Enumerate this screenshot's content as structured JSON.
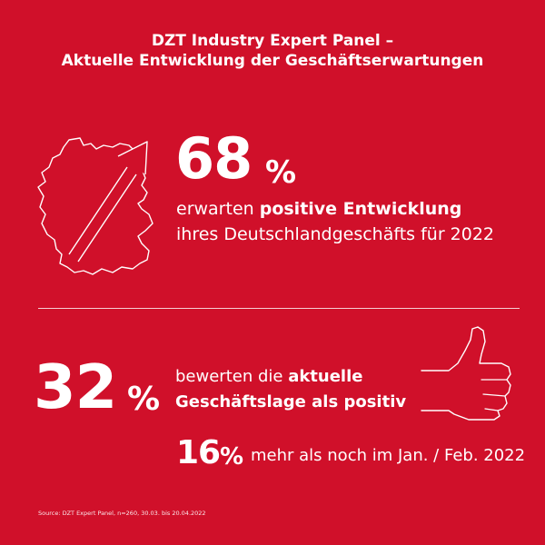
{
  "title": {
    "line1": "DZT Industry Expert Panel –",
    "line2": "Aktuelle Entwicklung der Geschäftserwartungen"
  },
  "stat_positive_outlook": {
    "value": "68",
    "unit": "%",
    "text_plain": "erwarten ",
    "text_bold": "positive Entwicklung",
    "text_line2": "ihres Deutschlandgeschäfts für 2022"
  },
  "stat_current_situation": {
    "value": "32",
    "unit": "%",
    "text_plain": "bewerten die ",
    "text_bold": "aktuelle",
    "text_line2": "Geschäftslage als positiv"
  },
  "stat_increase": {
    "value": "16",
    "unit": "%",
    "text": "mehr als noch im Jan. / Feb. 2022"
  },
  "source": "Source: DZT Expert Panel, n=260, 30.03. bis 20.04.2022",
  "icons": [
    "germany-map-icon",
    "arrow-up-right-icon",
    "thumbs-up-icon"
  ],
  "colors": {
    "background": "#d0102a",
    "foreground": "#ffffff"
  }
}
